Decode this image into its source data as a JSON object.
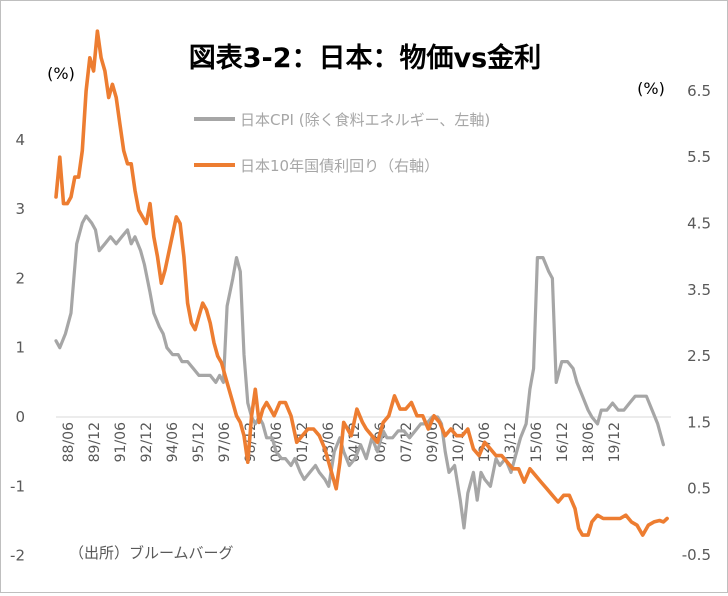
{
  "chart_data": {
    "type": "line",
    "title": "図表3-2：日本：物価vs金利",
    "left_unit": "(%)",
    "right_unit": "(%)",
    "source_note": "（出所）ブルームバーグ",
    "left_axis": {
      "ylim": [
        -2,
        4
      ],
      "ticks": [
        "-2",
        "-1",
        "0",
        "1",
        "2",
        "3",
        "4"
      ]
    },
    "right_axis": {
      "ylim": [
        -0.5,
        7.5
      ],
      "ticks": [
        "-0.5",
        "0.5",
        "1.5",
        "2.5",
        "3.5",
        "4.5",
        "5.5",
        "6.5"
      ]
    },
    "x_ticks": [
      "88/06",
      "89/12",
      "91/06",
      "92/12",
      "94/06",
      "95/12",
      "97/06",
      "98/12",
      "00/06",
      "01/12",
      "03/06",
      "04/12",
      "06/06",
      "07/12",
      "09/06",
      "10/12",
      "12/06",
      "13/12",
      "15/06",
      "16/12",
      "18/06",
      "19/12"
    ],
    "x_range": [
      1988.4,
      2021.0
    ],
    "series": [
      {
        "name": "日本CPI (除く食料エネルギー、左軸)",
        "axis": "left",
        "color": "#a6a6a6",
        "points": [
          [
            1988.4,
            1.1
          ],
          [
            1988.6,
            1.0
          ],
          [
            1988.9,
            1.2
          ],
          [
            1989.2,
            1.5
          ],
          [
            1989.5,
            2.5
          ],
          [
            1989.8,
            2.8
          ],
          [
            1990.0,
            2.9
          ],
          [
            1990.3,
            2.8
          ],
          [
            1990.5,
            2.7
          ],
          [
            1990.7,
            2.4
          ],
          [
            1991.0,
            2.5
          ],
          [
            1991.3,
            2.6
          ],
          [
            1991.6,
            2.5
          ],
          [
            1991.9,
            2.6
          ],
          [
            1992.2,
            2.7
          ],
          [
            1992.4,
            2.5
          ],
          [
            1992.6,
            2.6
          ],
          [
            1992.9,
            2.4
          ],
          [
            1993.1,
            2.2
          ],
          [
            1993.4,
            1.8
          ],
          [
            1993.6,
            1.5
          ],
          [
            1993.9,
            1.3
          ],
          [
            1994.1,
            1.2
          ],
          [
            1994.3,
            1.0
          ],
          [
            1994.6,
            0.9
          ],
          [
            1994.9,
            0.9
          ],
          [
            1995.1,
            0.8
          ],
          [
            1995.4,
            0.8
          ],
          [
            1995.7,
            0.7
          ],
          [
            1996.0,
            0.6
          ],
          [
            1996.3,
            0.6
          ],
          [
            1996.6,
            0.6
          ],
          [
            1996.9,
            0.5
          ],
          [
            1997.1,
            0.6
          ],
          [
            1997.3,
            0.5
          ],
          [
            1997.5,
            1.6
          ],
          [
            1997.8,
            2.0
          ],
          [
            1998.0,
            2.3
          ],
          [
            1998.2,
            2.1
          ],
          [
            1998.4,
            0.9
          ],
          [
            1998.6,
            0.2
          ],
          [
            1998.8,
            0.0
          ],
          [
            1999.0,
            -0.1
          ],
          [
            1999.2,
            0.0
          ],
          [
            1999.4,
            -0.1
          ],
          [
            1999.6,
            -0.3
          ],
          [
            1999.9,
            -0.3
          ],
          [
            2000.1,
            -0.5
          ],
          [
            2000.4,
            -0.6
          ],
          [
            2000.6,
            -0.6
          ],
          [
            2000.9,
            -0.7
          ],
          [
            2001.1,
            -0.6
          ],
          [
            2001.4,
            -0.8
          ],
          [
            2001.6,
            -0.9
          ],
          [
            2001.9,
            -0.8
          ],
          [
            2002.2,
            -0.7
          ],
          [
            2002.4,
            -0.8
          ],
          [
            2002.7,
            -0.9
          ],
          [
            2002.9,
            -1.0
          ],
          [
            2003.2,
            -0.5
          ],
          [
            2003.5,
            -0.3
          ],
          [
            2003.7,
            -0.5
          ],
          [
            2004.0,
            -0.7
          ],
          [
            2004.3,
            -0.6
          ],
          [
            2004.6,
            -0.4
          ],
          [
            2004.9,
            -0.6
          ],
          [
            2005.2,
            -0.3
          ],
          [
            2005.5,
            -0.5
          ],
          [
            2005.8,
            -0.2
          ],
          [
            2006.0,
            -0.3
          ],
          [
            2006.3,
            -0.3
          ],
          [
            2006.6,
            -0.2
          ],
          [
            2006.9,
            -0.2
          ],
          [
            2007.2,
            -0.3
          ],
          [
            2007.5,
            -0.2
          ],
          [
            2007.8,
            -0.1
          ],
          [
            2008.1,
            -0.1
          ],
          [
            2008.4,
            0.0
          ],
          [
            2008.7,
            0.0
          ],
          [
            2008.9,
            -0.1
          ],
          [
            2009.1,
            -0.5
          ],
          [
            2009.3,
            -0.8
          ],
          [
            2009.6,
            -0.7
          ],
          [
            2009.9,
            -1.2
          ],
          [
            2010.1,
            -1.6
          ],
          [
            2010.3,
            -1.1
          ],
          [
            2010.6,
            -0.8
          ],
          [
            2010.8,
            -1.2
          ],
          [
            2011.0,
            -0.8
          ],
          [
            2011.2,
            -0.9
          ],
          [
            2011.5,
            -1.0
          ],
          [
            2011.8,
            -0.6
          ],
          [
            2012.0,
            -0.7
          ],
          [
            2012.3,
            -0.6
          ],
          [
            2012.6,
            -0.8
          ],
          [
            2012.9,
            -0.5
          ],
          [
            2013.1,
            -0.3
          ],
          [
            2013.4,
            -0.1
          ],
          [
            2013.6,
            0.4
          ],
          [
            2013.8,
            0.7
          ],
          [
            2014.0,
            2.3
          ],
          [
            2014.3,
            2.3
          ],
          [
            2014.6,
            2.1
          ],
          [
            2014.8,
            2.0
          ],
          [
            2015.0,
            0.5
          ],
          [
            2015.3,
            0.8
          ],
          [
            2015.6,
            0.8
          ],
          [
            2015.9,
            0.7
          ],
          [
            2016.1,
            0.5
          ],
          [
            2016.4,
            0.3
          ],
          [
            2016.7,
            0.1
          ],
          [
            2016.9,
            0.0
          ],
          [
            2017.2,
            -0.1
          ],
          [
            2017.4,
            0.1
          ],
          [
            2017.7,
            0.1
          ],
          [
            2018.0,
            0.2
          ],
          [
            2018.3,
            0.1
          ],
          [
            2018.6,
            0.1
          ],
          [
            2018.9,
            0.2
          ],
          [
            2019.2,
            0.3
          ],
          [
            2019.5,
            0.3
          ],
          [
            2019.8,
            0.3
          ],
          [
            2020.1,
            0.1
          ],
          [
            2020.4,
            -0.1
          ],
          [
            2020.7,
            -0.4
          ]
        ]
      },
      {
        "name": "日本10年国債利回り（右軸）",
        "axis": "right",
        "color": "#ed7d31",
        "points": [
          [
            1988.4,
            4.9
          ],
          [
            1988.6,
            5.5
          ],
          [
            1988.8,
            4.8
          ],
          [
            1989.0,
            4.8
          ],
          [
            1989.2,
            4.9
          ],
          [
            1989.4,
            5.2
          ],
          [
            1989.6,
            5.2
          ],
          [
            1989.8,
            5.6
          ],
          [
            1990.0,
            6.5
          ],
          [
            1990.2,
            7.0
          ],
          [
            1990.4,
            6.8
          ],
          [
            1990.6,
            7.4
          ],
          [
            1990.8,
            7.0
          ],
          [
            1991.0,
            6.8
          ],
          [
            1991.2,
            6.4
          ],
          [
            1991.4,
            6.6
          ],
          [
            1991.6,
            6.4
          ],
          [
            1991.8,
            6.0
          ],
          [
            1992.0,
            5.6
          ],
          [
            1992.2,
            5.4
          ],
          [
            1992.4,
            5.4
          ],
          [
            1992.6,
            5.0
          ],
          [
            1992.8,
            4.7
          ],
          [
            1993.0,
            4.6
          ],
          [
            1993.2,
            4.5
          ],
          [
            1993.4,
            4.8
          ],
          [
            1993.6,
            4.3
          ],
          [
            1993.8,
            4.0
          ],
          [
            1994.0,
            3.6
          ],
          [
            1994.2,
            3.8
          ],
          [
            1994.5,
            4.2
          ],
          [
            1994.8,
            4.6
          ],
          [
            1995.0,
            4.5
          ],
          [
            1995.2,
            4.0
          ],
          [
            1995.4,
            3.3
          ],
          [
            1995.6,
            3.0
          ],
          [
            1995.8,
            2.9
          ],
          [
            1996.0,
            3.1
          ],
          [
            1996.2,
            3.3
          ],
          [
            1996.4,
            3.2
          ],
          [
            1996.6,
            3.0
          ],
          [
            1996.8,
            2.7
          ],
          [
            1997.0,
            2.5
          ],
          [
            1997.2,
            2.4
          ],
          [
            1997.4,
            2.2
          ],
          [
            1997.6,
            2.0
          ],
          [
            1997.8,
            1.8
          ],
          [
            1998.0,
            1.6
          ],
          [
            1998.2,
            1.5
          ],
          [
            1998.4,
            1.3
          ],
          [
            1998.6,
            0.9
          ],
          [
            1998.8,
            1.6
          ],
          [
            1999.0,
            2.0
          ],
          [
            1999.2,
            1.5
          ],
          [
            1999.4,
            1.7
          ],
          [
            1999.6,
            1.8
          ],
          [
            1999.8,
            1.7
          ],
          [
            2000.0,
            1.6
          ],
          [
            2000.3,
            1.8
          ],
          [
            2000.6,
            1.8
          ],
          [
            2000.9,
            1.6
          ],
          [
            2001.2,
            1.2
          ],
          [
            2001.5,
            1.3
          ],
          [
            2001.8,
            1.4
          ],
          [
            2002.1,
            1.4
          ],
          [
            2002.4,
            1.3
          ],
          [
            2002.7,
            1.1
          ],
          [
            2002.9,
            0.9
          ],
          [
            2003.1,
            0.7
          ],
          [
            2003.3,
            0.5
          ],
          [
            2003.5,
            0.9
          ],
          [
            2003.7,
            1.5
          ],
          [
            2003.9,
            1.4
          ],
          [
            2004.1,
            1.3
          ],
          [
            2004.4,
            1.7
          ],
          [
            2004.7,
            1.5
          ],
          [
            2004.9,
            1.4
          ],
          [
            2005.2,
            1.3
          ],
          [
            2005.5,
            1.2
          ],
          [
            2005.8,
            1.5
          ],
          [
            2006.1,
            1.6
          ],
          [
            2006.4,
            1.9
          ],
          [
            2006.7,
            1.7
          ],
          [
            2007.0,
            1.7
          ],
          [
            2007.3,
            1.8
          ],
          [
            2007.6,
            1.6
          ],
          [
            2007.9,
            1.6
          ],
          [
            2008.2,
            1.4
          ],
          [
            2008.5,
            1.6
          ],
          [
            2008.8,
            1.5
          ],
          [
            2009.1,
            1.3
          ],
          [
            2009.4,
            1.4
          ],
          [
            2009.7,
            1.3
          ],
          [
            2010.0,
            1.3
          ],
          [
            2010.3,
            1.4
          ],
          [
            2010.6,
            1.1
          ],
          [
            2010.9,
            1.0
          ],
          [
            2011.2,
            1.2
          ],
          [
            2011.5,
            1.1
          ],
          [
            2011.8,
            1.0
          ],
          [
            2012.1,
            1.0
          ],
          [
            2012.4,
            0.9
          ],
          [
            2012.7,
            0.8
          ],
          [
            2013.0,
            0.8
          ],
          [
            2013.3,
            0.6
          ],
          [
            2013.6,
            0.8
          ],
          [
            2013.9,
            0.7
          ],
          [
            2014.2,
            0.6
          ],
          [
            2014.5,
            0.5
          ],
          [
            2014.8,
            0.4
          ],
          [
            2015.1,
            0.3
          ],
          [
            2015.4,
            0.4
          ],
          [
            2015.7,
            0.4
          ],
          [
            2016.0,
            0.2
          ],
          [
            2016.2,
            -0.1
          ],
          [
            2016.4,
            -0.2
          ],
          [
            2016.7,
            -0.2
          ],
          [
            2016.9,
            0.0
          ],
          [
            2017.2,
            0.1
          ],
          [
            2017.5,
            0.05
          ],
          [
            2017.8,
            0.05
          ],
          [
            2018.1,
            0.05
          ],
          [
            2018.4,
            0.05
          ],
          [
            2018.7,
            0.1
          ],
          [
            2019.0,
            0.0
          ],
          [
            2019.3,
            -0.05
          ],
          [
            2019.6,
            -0.2
          ],
          [
            2019.9,
            -0.05
          ],
          [
            2020.2,
            0.0
          ],
          [
            2020.5,
            0.02
          ],
          [
            2020.7,
            0.0
          ],
          [
            2020.9,
            0.05
          ]
        ]
      }
    ]
  }
}
